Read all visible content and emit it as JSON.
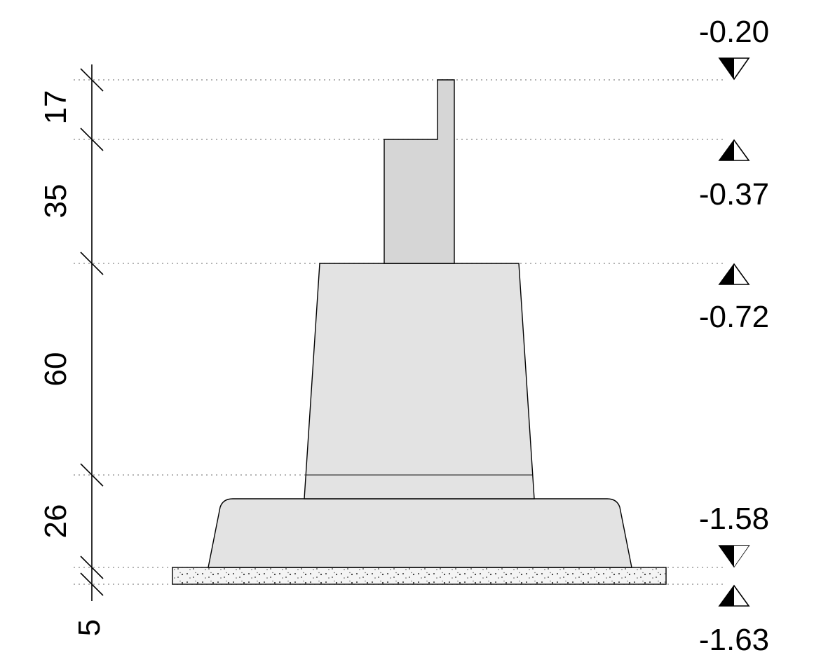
{
  "dimensions": [
    {
      "value": "17"
    },
    {
      "value": "35"
    },
    {
      "value": "60"
    },
    {
      "value": "26"
    },
    {
      "value": "5"
    }
  ],
  "levels": [
    {
      "value": "-0.20",
      "marker": "triangle-down-half-filled"
    },
    {
      "value": "-0.37",
      "marker": "triangle-up-half-filled"
    },
    {
      "value": "-0.72",
      "marker": "triangle-up-half-filled"
    },
    {
      "value": "-1.58",
      "marker": "triangle-down-filled"
    },
    {
      "value": "-1.63",
      "marker": "triangle-up-half-filled"
    }
  ],
  "colors": {
    "concrete": "#e3e3e3",
    "curb": "#d6d6d6",
    "blinding": "#f4f4f4",
    "guide": "#9a9a9a"
  }
}
